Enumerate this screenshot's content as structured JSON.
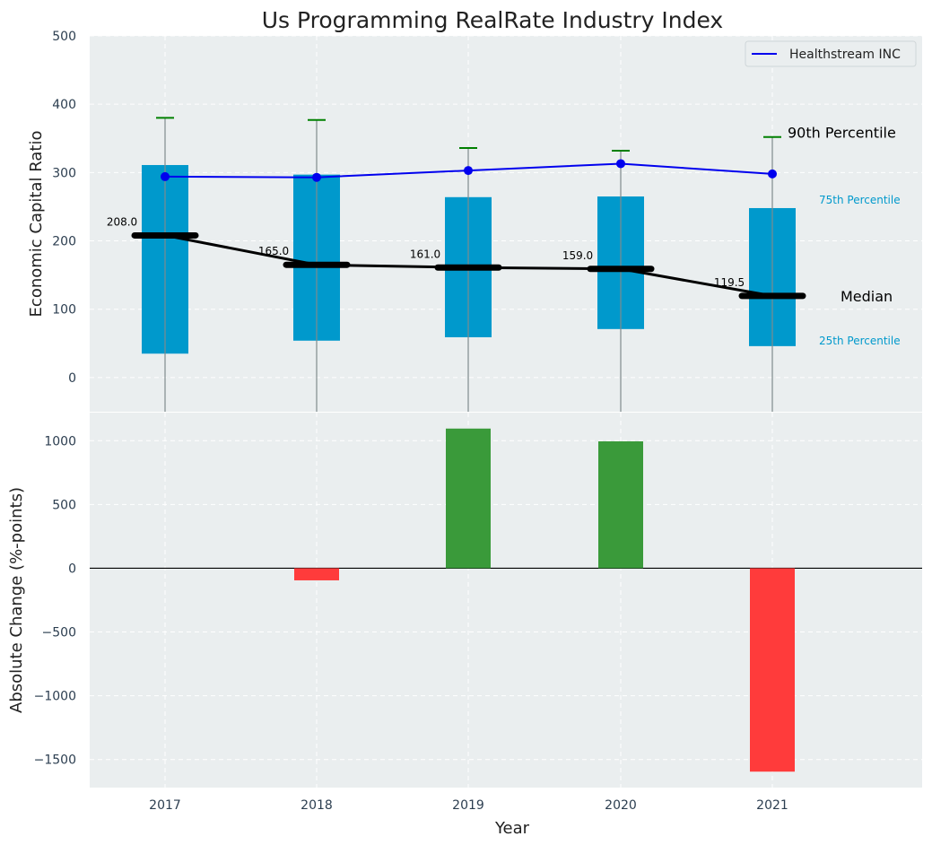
{
  "title": "Us Programming RealRate Industry Index",
  "colors": {
    "box": "#0099cc",
    "company_line": "#0000ee",
    "median": "#000000",
    "whisker": "#008000",
    "positive": "#3a9a3a",
    "negative": "#ff3b3b",
    "panel_bg": "#eaeeef",
    "tick_text": "#2c3e50"
  },
  "chart_data": [
    {
      "type": "box",
      "panel": "top",
      "ylabel": "Economic Capital Ratio",
      "ylim": [
        -50,
        500
      ],
      "yticks": [
        0,
        100,
        200,
        300,
        400,
        500
      ],
      "grid": true,
      "legend": {
        "placement": "top-right",
        "entries": [
          "Healthstream INC"
        ]
      },
      "categories": [
        "2017",
        "2018",
        "2019",
        "2020",
        "2021"
      ],
      "p25": [
        35,
        54,
        59,
        71,
        46
      ],
      "p75": [
        311,
        297,
        264,
        265,
        248
      ],
      "p90": [
        380,
        377,
        336,
        332,
        352
      ],
      "median": [
        208.0,
        165.0,
        161.0,
        159.0,
        119.5
      ],
      "median_labels": [
        "208.0",
        "165.0",
        "161.0",
        "159.0",
        "119.5"
      ],
      "series": [
        {
          "name": "Healthstream INC",
          "values": [
            294,
            293,
            303,
            313,
            298
          ]
        }
      ],
      "annotations": {
        "p90": "90th Percentile",
        "p75": "75th Percentile",
        "median": "Median",
        "p25": "25th Percentile"
      }
    },
    {
      "type": "bar",
      "panel": "bottom",
      "xlabel": "Year",
      "ylabel": "Absolute Change (%-points)",
      "ylim": [
        -1720,
        1220
      ],
      "yticks": [
        -1500,
        -1000,
        -500,
        0,
        500,
        1000
      ],
      "ytick_labels": [
        "−1500",
        "−1000",
        "−500",
        "0",
        "500",
        "1000"
      ],
      "grid": true,
      "categories": [
        "2017",
        "2018",
        "2019",
        "2020",
        "2021"
      ],
      "values": [
        0,
        -95,
        1095,
        995,
        -1595
      ]
    }
  ]
}
